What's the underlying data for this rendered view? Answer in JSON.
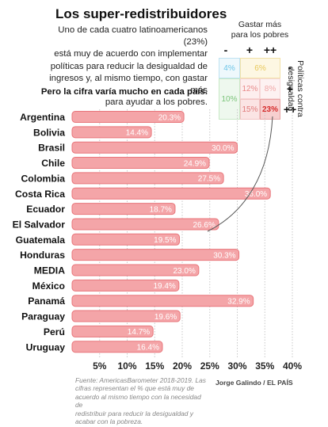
{
  "header": {
    "title": "Los super-redistribuidores",
    "subtitle_lines": [
      "Uno de cada cuatro latinoamericanos (23%)",
      "está muy de acuerdo con implementar",
      "políticas para reducir la desigualdad de",
      "ingresos y, al mismo tiempo, con gastar más",
      "para ayudar a los pobres."
    ],
    "subtitle_bold": "Pero la cifra varía mucho en cada país."
  },
  "matrix": {
    "top_label_lines": [
      "Gastar más",
      "para los pobres"
    ],
    "side_label_lines": [
      "Políticas contra",
      "desigualdad"
    ],
    "col_headers": [
      "-",
      "+",
      "++"
    ],
    "row_headers": [
      "-",
      "+",
      "++"
    ],
    "cells": {
      "a": "4%",
      "b": "6%",
      "c": "10%",
      "d": "12%",
      "e": "8%",
      "f": "15%",
      "g": "23%"
    },
    "colors": {
      "blue_text": "#6ec6e8",
      "yellow_text": "#e8c85a",
      "green_text": "#7cc47a",
      "pink_text": "#e88a8a",
      "red_text": "#d62a2a"
    }
  },
  "chart_data": {
    "type": "bar",
    "categories": [
      "Argentina",
      "Bolivia",
      "Brasil",
      "Chile",
      "Colombia",
      "Costa Rica",
      "Ecuador",
      "El Salvador",
      "Guatemala",
      "Honduras",
      "MEDIA",
      "México",
      "Panamá",
      "Paraguay",
      "Perú",
      "Uruguay"
    ],
    "values": [
      20.3,
      14.4,
      30.0,
      24.9,
      27.5,
      36.0,
      18.7,
      26.6,
      19.5,
      30.3,
      23.0,
      19.4,
      32.9,
      19.6,
      14.7,
      16.4
    ],
    "value_labels": [
      "20.3%",
      "14.4%",
      "30.0%",
      "24.9%",
      "27.5%",
      "36.0%",
      "18.7%",
      "26.6%",
      "19.5%",
      "30.3%",
      "23.0%",
      "19.4%",
      "32.9%",
      "19.6%",
      "14.7%",
      "16.4%"
    ],
    "xticks": [
      5,
      10,
      15,
      20,
      25,
      30,
      35,
      40
    ],
    "xtick_labels": [
      "5%",
      "10%",
      "15%",
      "20%",
      "25%",
      "30%",
      "35%",
      "40%"
    ],
    "xlim": [
      0,
      40
    ],
    "grid": true,
    "colors": {
      "bar_fill": "#f4a5a8",
      "bar_stroke": "#e8757a",
      "grid": "#c8c8c8"
    }
  },
  "footer": {
    "source_lines": [
      "Fuente: AmericasBarometer 2018-2019. Las",
      "cifras representan el % que está muy de",
      "acuerdo al mismo tiempo con la necesidad de",
      "redistribuir para reducir la desigualdad y",
      "acabar con la pobreza."
    ],
    "credit": "Jorge Galindo / EL PAÍS"
  }
}
